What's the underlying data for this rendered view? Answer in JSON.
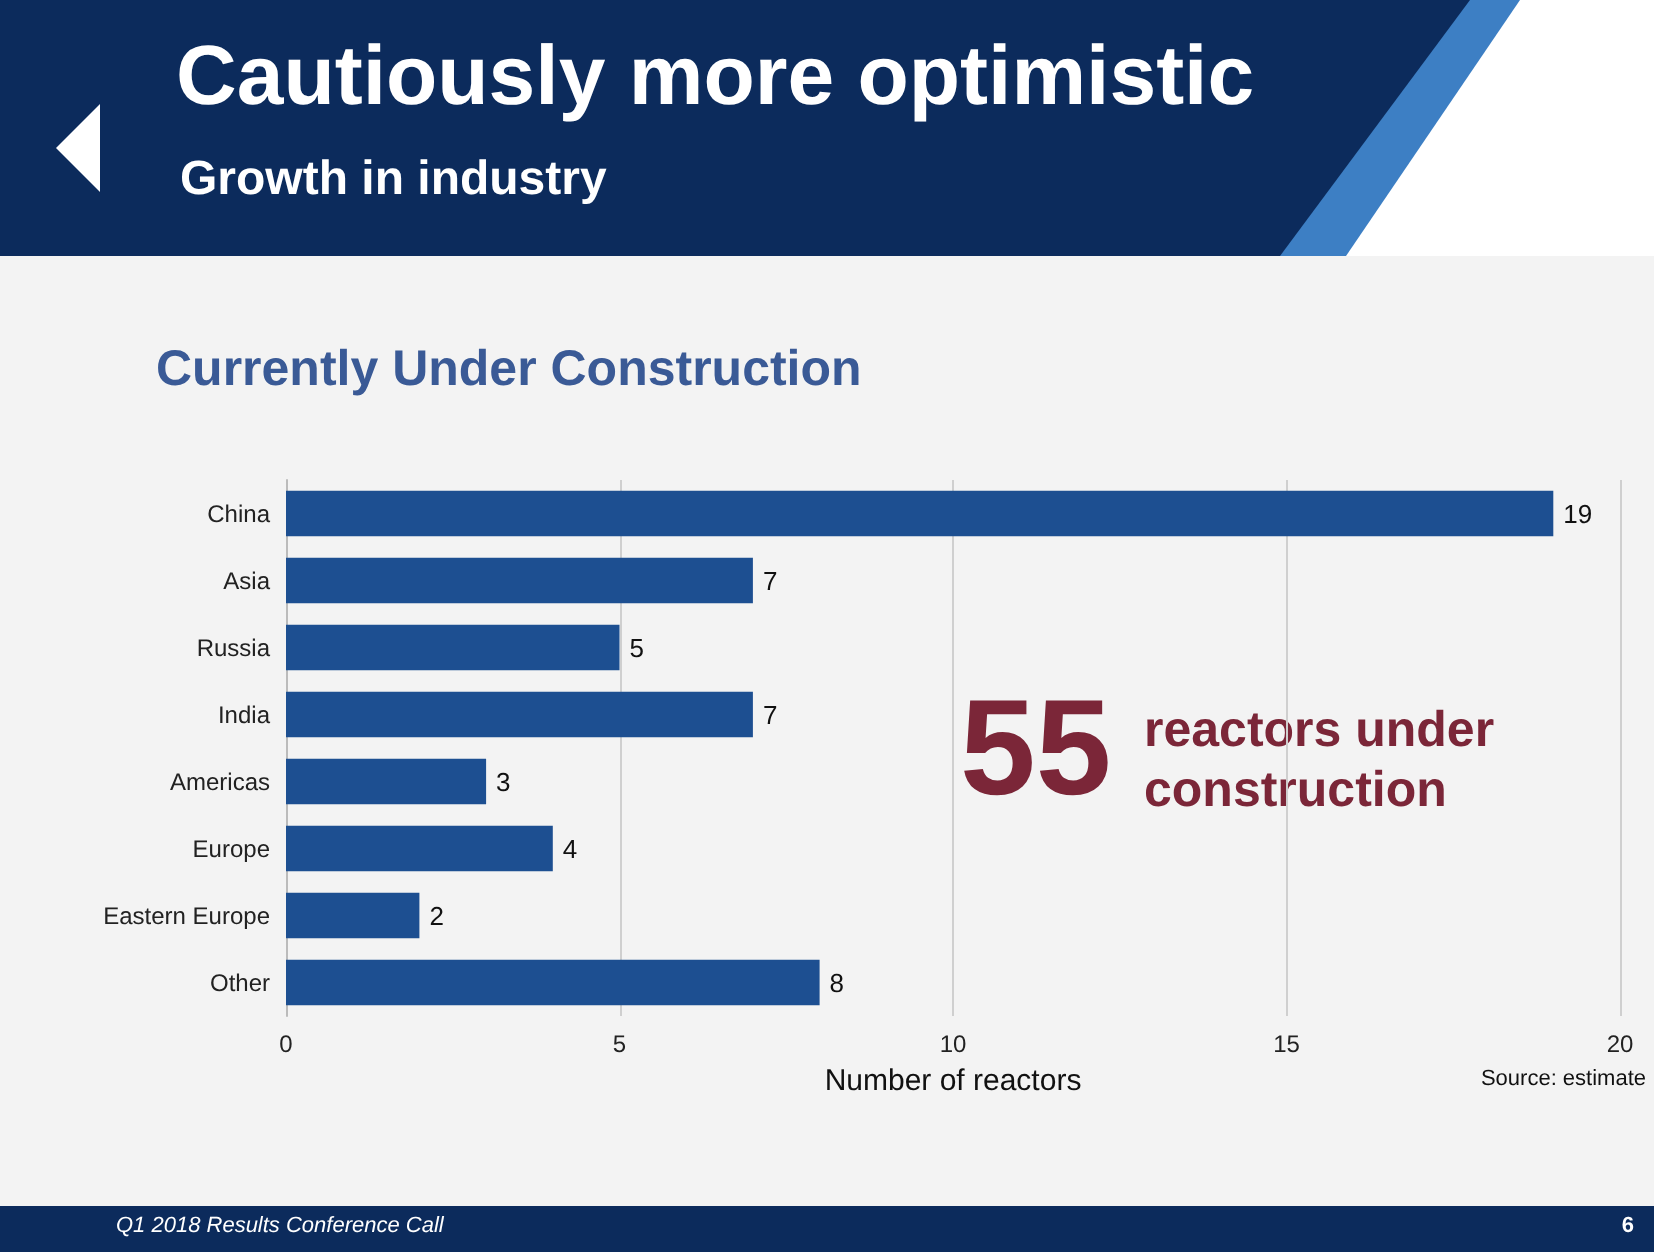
{
  "chart_data": {
    "type": "bar",
    "orientation": "horizontal",
    "title": "Cautiously more optimistic",
    "subtitle": "Growth in industry",
    "categories": [
      "China",
      "Asia",
      "Russia",
      "India",
      "Americas",
      "Europe",
      "Eastern Europe",
      "Other"
    ],
    "values": [
      19,
      7,
      5,
      7,
      3,
      4,
      2,
      8
    ],
    "color": "#1d4f91",
    "xlim": [
      0,
      20
    ],
    "xticks": [
      0,
      5,
      10,
      15,
      20
    ],
    "xlabel": "Number of reactors",
    "grid": "x",
    "data_labels": true,
    "annotations": [
      "Currently Under Construction",
      "55",
      "reactors under construction",
      "Source: estimate",
      "Q1 2018 Results Conference Call",
      "6"
    ]
  }
}
